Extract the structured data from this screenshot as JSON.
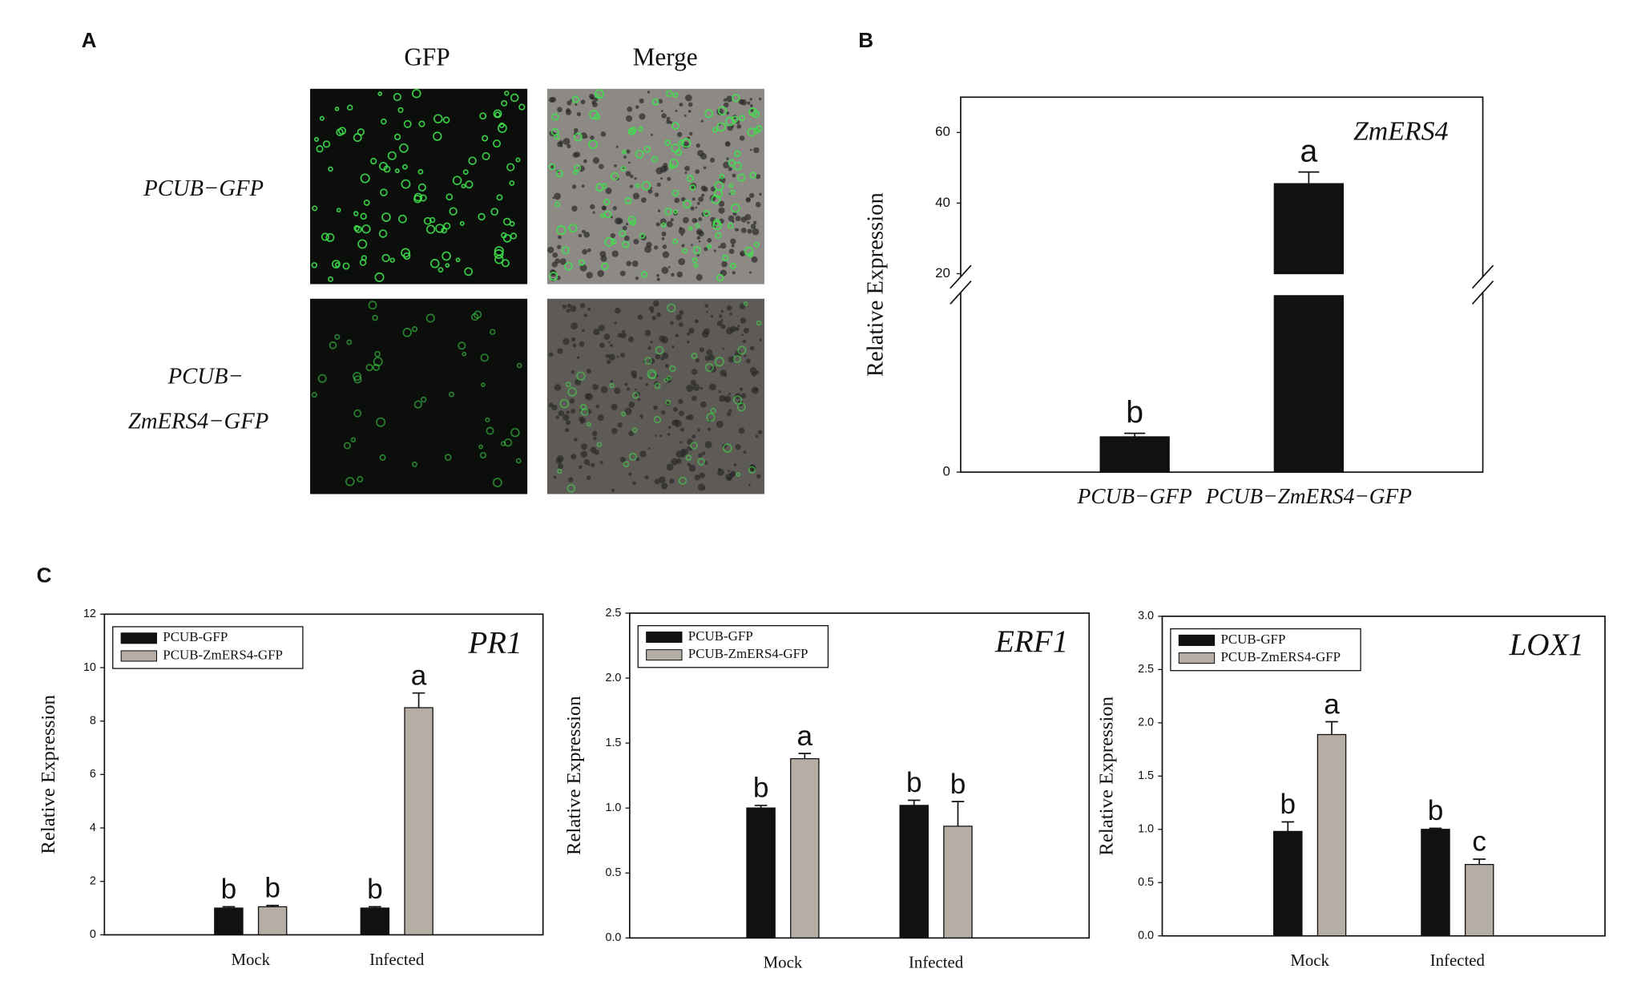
{
  "panel_labels": [
    "A",
    "B",
    "C"
  ],
  "panel_a": {
    "columns": [
      "GFP",
      "Merge"
    ],
    "rows": [
      [
        "PCUB−GFP"
      ],
      [
        "PCUB−",
        "ZmERS4−GFP"
      ]
    ]
  },
  "chart_data": [
    {
      "type": "bar",
      "title": "ZmERS4",
      "ylabel": "Relative Expression",
      "categories": [
        "PCUB−GFP",
        "PCUB−ZmERS4−GFP"
      ],
      "values": [
        1,
        45.5
      ],
      "errors": [
        0.1,
        3.3
      ],
      "letters": [
        "b",
        "a"
      ],
      "color": "#111111",
      "ylim": [
        0,
        70
      ],
      "ybreak": [
        5,
        20
      ],
      "yticks": [
        0,
        20,
        40,
        60
      ]
    },
    {
      "type": "bar",
      "title": "PR1",
      "ylabel": "Relative Expression",
      "categories": [
        "Mock",
        "Infected"
      ],
      "series": [
        {
          "name": "PCUB-GFP",
          "color": "#111111",
          "values": [
            1.0,
            1.0
          ],
          "errors": [
            0.05,
            0.05
          ],
          "letters": [
            "b",
            "b"
          ]
        },
        {
          "name": "PCUB-ZmERS4-GFP",
          "color": "#b5aea4",
          "values": [
            1.05,
            8.5
          ],
          "errors": [
            0.05,
            0.55
          ],
          "letters": [
            "b",
            "a"
          ]
        }
      ],
      "ylim": [
        0,
        12
      ],
      "yticks": [
        0,
        2,
        4,
        6,
        8,
        10,
        12
      ],
      "legend": "upper left"
    },
    {
      "type": "bar",
      "title": "ERF1",
      "ylabel": "Relative Expression",
      "categories": [
        "Mock",
        "Infected"
      ],
      "series": [
        {
          "name": "PCUB-GFP",
          "color": "#111111",
          "values": [
            1.0,
            1.02
          ],
          "errors": [
            0.02,
            0.04
          ],
          "letters": [
            "b",
            "b"
          ]
        },
        {
          "name": "PCUB-ZmERS4-GFP",
          "color": "#b5aea4",
          "values": [
            1.38,
            0.86
          ],
          "errors": [
            0.04,
            0.19
          ],
          "letters": [
            "a",
            "b"
          ]
        }
      ],
      "ylim": [
        0,
        2.5
      ],
      "yticks": [
        {
          "value": 0,
          "label": "0.0"
        },
        0.5,
        {
          "value": 1,
          "label": "1.0"
        },
        1.5,
        {
          "value": 2,
          "label": "2.0"
        },
        2.5
      ],
      "legend": "upper left"
    },
    {
      "type": "bar",
      "title": "LOX1",
      "ylabel": "Relative Expression",
      "categories": [
        "Mock",
        "Infected"
      ],
      "series": [
        {
          "name": "PCUB-GFP",
          "color": "#111111",
          "values": [
            0.98,
            1.0
          ],
          "errors": [
            0.09,
            0.01
          ],
          "letters": [
            "b",
            "b"
          ]
        },
        {
          "name": "PCUB-ZmERS4-GFP",
          "color": "#b5aea4",
          "values": [
            1.89,
            0.67
          ],
          "errors": [
            0.12,
            0.05
          ],
          "letters": [
            "a",
            "c"
          ]
        }
      ],
      "ylim": [
        0,
        3
      ],
      "yticks": [
        {
          "value": 0,
          "label": "0.0"
        },
        0.5,
        {
          "value": 1,
          "label": "1.0"
        },
        1.5,
        {
          "value": 2,
          "label": "2.0"
        },
        2.5,
        {
          "value": 3,
          "label": "3.0"
        }
      ],
      "legend": "upper left"
    }
  ]
}
